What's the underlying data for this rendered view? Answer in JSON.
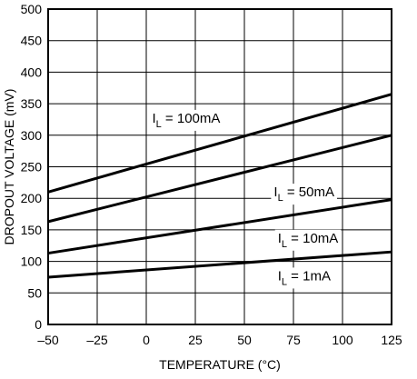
{
  "chart_data": {
    "type": "line",
    "xlabel": "TEMPERATURE (°C)",
    "ylabel": "DROPOUT VOLTAGE (mV)",
    "xlim": [
      -50,
      125
    ],
    "ylim": [
      0,
      500
    ],
    "xticks": [
      "–50",
      "–25",
      "0",
      "25",
      "50",
      "75",
      "100",
      "125"
    ],
    "yticks": [
      "0",
      "50",
      "100",
      "150",
      "200",
      "250",
      "300",
      "350",
      "400",
      "450",
      "500"
    ],
    "grid": true,
    "series": [
      {
        "name": "100mA",
        "x": [
          -50,
          125
        ],
        "y": [
          210,
          365
        ],
        "label_x": 3,
        "label_y": 320
      },
      {
        "name": "50mA",
        "x": [
          -50,
          125
        ],
        "y": [
          163,
          300
        ],
        "label_x": 65,
        "label_y": 203
      },
      {
        "name": "10mA",
        "x": [
          -50,
          125
        ],
        "y": [
          113,
          198
        ],
        "label_x": 67,
        "label_y": 130
      },
      {
        "name": "1mA",
        "x": [
          -50,
          125
        ],
        "y": [
          75,
          115
        ],
        "label_x": 67,
        "label_y": 70
      }
    ]
  }
}
